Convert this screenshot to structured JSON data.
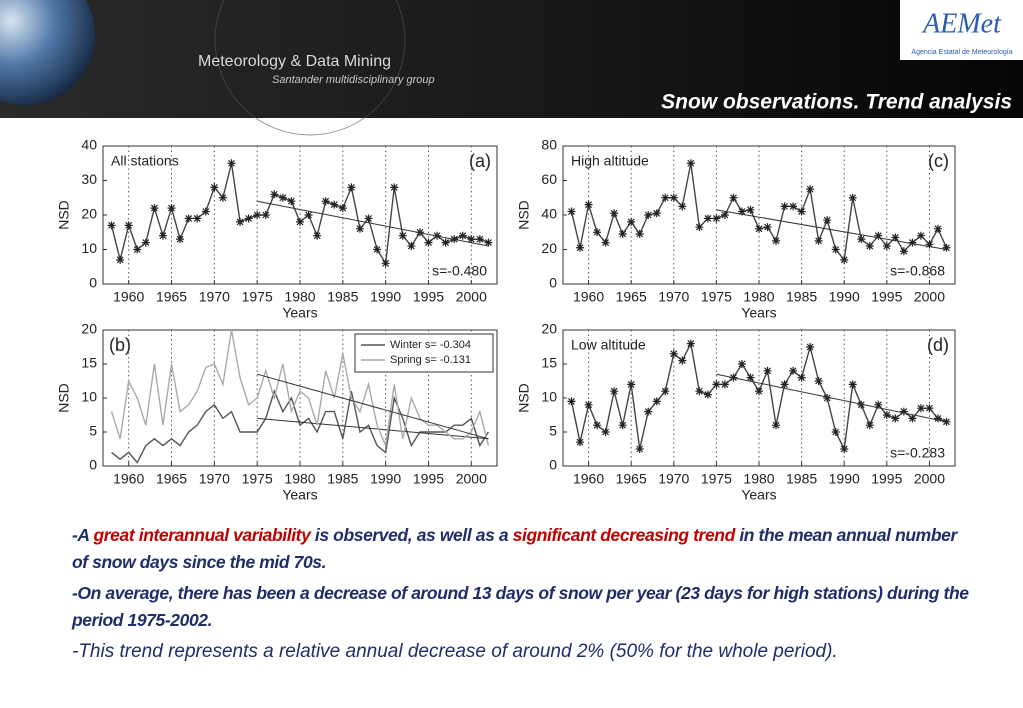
{
  "header": {
    "brand": "Meteorology & Data Mining",
    "group": "Santander multidisciplinary group",
    "logo": "AEMet",
    "logo_caption": "Agencia Estatal de Meteorología",
    "title": "Snow observations. Trend analysis"
  },
  "chart_data": [
    {
      "type": "line",
      "title": "All stations",
      "panel_label": "(a)",
      "annotation": "s=-0.480",
      "x_label": "Years",
      "y_label": "NSD",
      "x": [
        1958,
        1959,
        1960,
        1961,
        1962,
        1963,
        1964,
        1965,
        1966,
        1967,
        1968,
        1969,
        1970,
        1971,
        1972,
        1973,
        1974,
        1975,
        1976,
        1977,
        1978,
        1979,
        1980,
        1981,
        1982,
        1983,
        1984,
        1985,
        1986,
        1987,
        1988,
        1989,
        1990,
        1991,
        1992,
        1993,
        1994,
        1995,
        1996,
        1997,
        1998,
        1999,
        2000,
        2001,
        2002
      ],
      "series": [
        {
          "color": "#444444",
          "marker": "star",
          "values": [
            17,
            7,
            17,
            10,
            12,
            22,
            14,
            22,
            13,
            19,
            19,
            21,
            28,
            25,
            35,
            18,
            19,
            20,
            20,
            26,
            25,
            24,
            18,
            20,
            14,
            24,
            23,
            22,
            28,
            16,
            19,
            10,
            6,
            28,
            14,
            11,
            15,
            12,
            14,
            12,
            13,
            14,
            13,
            13,
            12
          ],
          "trend": {
            "x": [
              1975,
              2002
            ],
            "values": [
              24,
              11
            ]
          }
        }
      ],
      "xlim": [
        1957,
        2003
      ],
      "xticks": [
        1960,
        1965,
        1970,
        1975,
        1980,
        1985,
        1990,
        1995,
        2000
      ],
      "ylim": [
        0,
        40
      ],
      "yticks": [
        0,
        10,
        20,
        30,
        40
      ],
      "grid": "x-dotted"
    },
    {
      "type": "line",
      "title": "High altitude",
      "panel_label": "(c)",
      "annotation": "s=-0.868",
      "x_label": "Years",
      "y_label": "NSD",
      "x": [
        1958,
        1959,
        1960,
        1961,
        1962,
        1963,
        1964,
        1965,
        1966,
        1967,
        1968,
        1969,
        1970,
        1971,
        1972,
        1973,
        1974,
        1975,
        1976,
        1977,
        1978,
        1979,
        1980,
        1981,
        1982,
        1983,
        1984,
        1985,
        1986,
        1987,
        1988,
        1989,
        1990,
        1991,
        1992,
        1993,
        1994,
        1995,
        1996,
        1997,
        1998,
        1999,
        2000,
        2001,
        2002
      ],
      "series": [
        {
          "color": "#444444",
          "marker": "star",
          "values": [
            42,
            21,
            46,
            30,
            24,
            41,
            29,
            36,
            29,
            40,
            41,
            50,
            50,
            45,
            70,
            33,
            38,
            38,
            40,
            50,
            42,
            43,
            32,
            33,
            25,
            45,
            45,
            42,
            55,
            25,
            37,
            20,
            14,
            50,
            26,
            22,
            28,
            22,
            27,
            19,
            24,
            28,
            23,
            32,
            21
          ],
          "trend": {
            "x": [
              1975,
              2002
            ],
            "values": [
              43,
              20
            ]
          }
        }
      ],
      "xlim": [
        1957,
        2003
      ],
      "xticks": [
        1960,
        1965,
        1970,
        1975,
        1980,
        1985,
        1990,
        1995,
        2000
      ],
      "ylim": [
        0,
        80
      ],
      "yticks": [
        0,
        20,
        40,
        60,
        80
      ],
      "grid": "x-dotted"
    },
    {
      "type": "line",
      "panel_label": "(b)",
      "x_label": "Years",
      "y_label": "NSD",
      "legend": "upper right",
      "x": [
        1958,
        1959,
        1960,
        1961,
        1962,
        1963,
        1964,
        1965,
        1966,
        1967,
        1968,
        1969,
        1970,
        1971,
        1972,
        1973,
        1974,
        1975,
        1976,
        1977,
        1978,
        1979,
        1980,
        1981,
        1982,
        1983,
        1984,
        1985,
        1986,
        1987,
        1988,
        1989,
        1990,
        1991,
        1992,
        1993,
        1994,
        1995,
        1996,
        1997,
        1998,
        1999,
        2000,
        2001,
        2002
      ],
      "series": [
        {
          "name": "Winter s= -0.304",
          "color": "#555555",
          "values": [
            2,
            1,
            2,
            0.5,
            3,
            4,
            3,
            4,
            3,
            5,
            6,
            8,
            9,
            7,
            8,
            5,
            5,
            5,
            7,
            11,
            8,
            10,
            6,
            7,
            5,
            8,
            8,
            4,
            11,
            5,
            6,
            3,
            2,
            10,
            7,
            3,
            5,
            5,
            5,
            5,
            6,
            6,
            7,
            3,
            5
          ],
          "trend": {
            "x": [
              1975,
              2002
            ],
            "values": [
              7,
              4
            ]
          }
        },
        {
          "name": "Spring s= -0.131",
          "color": "#aaaaaa",
          "values": [
            8,
            4,
            12.5,
            10,
            6,
            15,
            6,
            15,
            8,
            9,
            11,
            14.5,
            15,
            12,
            20,
            13,
            9,
            10,
            14,
            10,
            15,
            8,
            11,
            10,
            6,
            14,
            10,
            16.5,
            10,
            8,
            12,
            6,
            3,
            12,
            4,
            10,
            7,
            6,
            6,
            5,
            4,
            4,
            5,
            8,
            3
          ],
          "trend": {
            "x": [
              1975,
              2002
            ],
            "values": [
              13.5,
              4
            ]
          }
        }
      ],
      "xlim": [
        1957,
        2003
      ],
      "xticks": [
        1960,
        1965,
        1970,
        1975,
        1980,
        1985,
        1990,
        1995,
        2000
      ],
      "ylim": [
        0,
        20
      ],
      "yticks": [
        0,
        5,
        10,
        15,
        20
      ],
      "grid": "x-dotted"
    },
    {
      "type": "line",
      "title": "Low altitude",
      "panel_label": "(d)",
      "annotation": "s=-0.283",
      "x_label": "Years",
      "y_label": "NSD",
      "x": [
        1958,
        1959,
        1960,
        1961,
        1962,
        1963,
        1964,
        1965,
        1966,
        1967,
        1968,
        1969,
        1970,
        1971,
        1972,
        1973,
        1974,
        1975,
        1976,
        1977,
        1978,
        1979,
        1980,
        1981,
        1982,
        1983,
        1984,
        1985,
        1986,
        1987,
        1988,
        1989,
        1990,
        1991,
        1992,
        1993,
        1994,
        1995,
        1996,
        1997,
        1998,
        1999,
        2000,
        2001,
        2002
      ],
      "series": [
        {
          "color": "#444444",
          "marker": "star",
          "values": [
            9.5,
            3.5,
            9,
            6,
            5,
            11,
            6,
            12,
            2.5,
            8,
            9.5,
            11,
            16.5,
            15.5,
            18,
            11,
            10.5,
            12,
            12,
            13,
            15,
            13,
            11,
            14,
            6,
            12,
            14,
            13,
            17.5,
            12.5,
            10,
            5,
            2.5,
            12,
            9,
            6,
            9,
            7.5,
            7,
            8,
            7,
            8.5,
            8.5,
            7,
            6.5
          ],
          "trend": {
            "x": [
              1975,
              2002
            ],
            "values": [
              13.5,
              6.5
            ]
          }
        }
      ],
      "xlim": [
        1957,
        2003
      ],
      "xticks": [
        1960,
        1965,
        1970,
        1975,
        1980,
        1985,
        1990,
        1995,
        2000
      ],
      "ylim": [
        0,
        20
      ],
      "yticks": [
        0,
        5,
        10,
        15,
        20
      ],
      "grid": "x-dotted"
    }
  ],
  "notes": [
    {
      "style": "bold",
      "segments": [
        {
          "text": "-A "
        },
        {
          "text": "great interannual variability",
          "color": "#c00000"
        },
        {
          "text": " is observed, as well as a "
        },
        {
          "text": "significant decreasing trend",
          "color": "#c00000"
        },
        {
          "text": " in the mean annual number of snow days since the mid 70s."
        }
      ]
    },
    {
      "style": "bold",
      "segments": [
        {
          "text": "-On average, there has been a decrease of around 13 days of snow per year (23 days for high stations) during the period 1975-2002."
        }
      ]
    },
    {
      "style": "normal",
      "segments": [
        {
          "text": "-This trend represents a relative annual decrease of around 2% (50% for the whole period)."
        }
      ]
    }
  ]
}
